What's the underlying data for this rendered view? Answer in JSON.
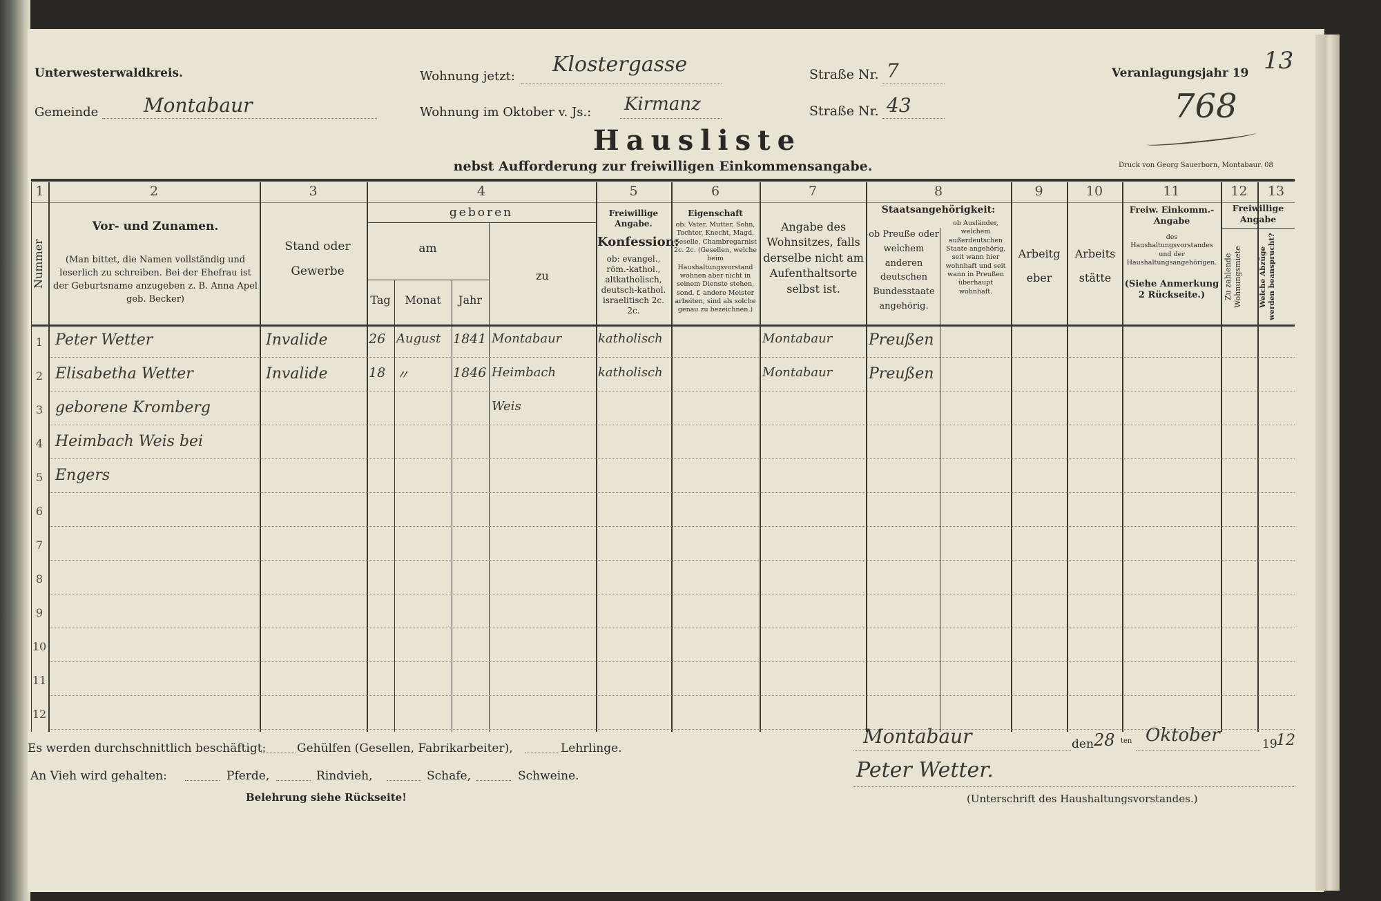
{
  "header": {
    "district": "Unterwesterwaldkreis.",
    "gemeinde_label": "Gemeinde",
    "gemeinde_value": "Montabaur",
    "wohnung_jetzt_label": "Wohnung jetzt:",
    "wohnung_jetzt_value": "Klostergasse",
    "strasse1_label": "Straße Nr.",
    "strasse1_value": "7",
    "wohnung_oktober_label": "Wohnung im Oktober v. Js.:",
    "wohnung_oktober_value": "Kirmanz",
    "strasse2_label": "Straße Nr.",
    "strasse2_value": "43",
    "jahr_label": "Veranlagungsjahr 19",
    "jahr_value": "13",
    "list_number": "768",
    "title": "Hausliste",
    "subtitle": "nebst Aufforderung zur freiwilligen Einkommensangabe.",
    "printer": "Druck von Georg Sauerborn, Montabaur. 08"
  },
  "columns": {
    "numbers": [
      "1",
      "2",
      "3",
      "4",
      "5",
      "6",
      "7",
      "8",
      "9",
      "10",
      "11",
      "12",
      "13"
    ],
    "c1": "Nummer",
    "c2_title": "Vor- und Zunamen.",
    "c2_note": "(Man bittet, die Namen vollständig und leserlich zu schreiben. Bei der Ehefrau ist der Geburtsname anzugeben z. B. Anna Apel geb. Becker)",
    "c3": "Stand oder Gewerbe",
    "c4_geboren": "geboren",
    "c4_am": "am",
    "c4_tag": "Tag",
    "c4_monat": "Monat",
    "c4_jahr": "Jahr",
    "c4_zu": "zu",
    "c5_title": "Freiwillige Angabe.",
    "c5_konf": "Konfession:",
    "c5_note": "ob: evangel., röm.-kathol., altkatholisch, deutsch-kathol. israelitisch 2c. 2c.",
    "c6_title": "Eigenschaft",
    "c6_note": "ob: Vater, Mutter, Sohn, Tochter, Knecht, Magd, Geselle, Chambregarnist 2c. 2c. (Gesellen, welche beim Haushaltungsvorstand wohnen aber nicht in seinem Dienste stehen, sond. f. andere Meister arbeiten, sind als solche genau zu bezeichnen.)",
    "c7": "Angabe des Wohnsitzes, falls derselbe nicht am Aufenthaltsorte selbst ist.",
    "c8_title": "Staatsangehörigkeit:",
    "c8a": "ob Preuße oder welchem anderen deutschen Bundesstaate angehörig.",
    "c8b": "ob Ausländer, welchem außerdeutschen Staate angehörig, seit wann hier wohnhaft und seit wann in Preußen überhaupt wohnhaft.",
    "c9": "Arbeitgeber",
    "c10": "Arbeitsstätte",
    "c11_title": "Freiw. Einkomm.-Angabe",
    "c11_note": "des Haushaltungsvorstandes und der Haushaltungsangehörigen.",
    "c11_ref": "(Siehe Anmerkung 2 Rückseite.)",
    "c1213_title": "Freiwillige Angabe",
    "c12": "Zu zahlende Wohnungsmiete",
    "c13": "Welche Abzüge werden beansprucht?"
  },
  "row_numbers": [
    "1",
    "2",
    "3",
    "4",
    "5",
    "6",
    "7",
    "8",
    "9",
    "10",
    "11",
    "12"
  ],
  "rows": [
    {
      "name": "Peter Wetter",
      "stand": "Invalide",
      "tag": "26",
      "monat": "August",
      "jahr": "1841",
      "ort": "Montabaur",
      "konfession": "katholisch",
      "wohnsitz": "Montabaur",
      "staat": "Preußen"
    },
    {
      "name": "Elisabetha Wetter",
      "stand": "Invalide",
      "tag": "18",
      "monat": "〃",
      "jahr": "1846",
      "ort": "Heimbach",
      "konfession": "katholisch",
      "wohnsitz": "Montabaur",
      "staat": "Preußen"
    },
    {
      "name": "geborene Kromberg",
      "ort": "Weis"
    },
    {
      "name": "Heimbach Weis bei"
    },
    {
      "name": "Engers"
    }
  ],
  "footer": {
    "beschaeftigt": "Es werden durchschnittlich beschäftigt:",
    "gehuelfen": "Gehülfen (Gesellen, Fabrikarbeiter),",
    "lehrlinge": "Lehrlinge.",
    "vieh": "An Vieh wird gehalten:",
    "pferde": "Pferde,",
    "rindvieh": "Rindvieh,",
    "schafe": "Schafe,",
    "schweine": "Schweine.",
    "belehrung": "Belehrung siehe Rückseite!",
    "place": "Montabaur",
    "den": "den",
    "day": "28",
    "ten": "ten",
    "month": "Oktober",
    "year_printed": "19",
    "year_hand": "12",
    "signature": "Peter Wetter.",
    "signature_caption": "(Unterschrift des Haushaltungsvorstandes.)"
  }
}
